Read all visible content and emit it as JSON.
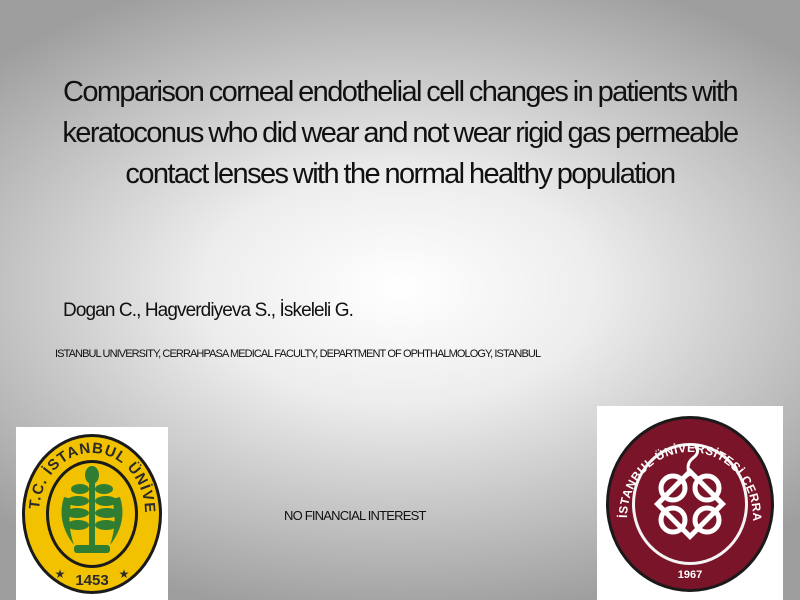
{
  "title": "Comparison corneal endothelial cell changes in patients with keratoconus who did wear and not wear rigid gas permeable  contact lenses with the normal healthy population",
  "authors": "Dogan C.,  Hagverdiyeva S., İskeleli G.",
  "affiliation": "ISTANBUL UNIVERSITY, CERRAHPASA MEDICAL FACULTY, DEPARTMENT OF OPHTHALMOLOGY, ISTANBUL",
  "disclosure": "NO FINANCIAL INTEREST",
  "logos": {
    "left": {
      "icon": "istanbul-university-seal",
      "ring_text": "T.C. İSTANBUL ÜNİVERSİTESİ",
      "year": "1453",
      "colors": {
        "ring": "#f2c200",
        "emblem": "#2f7d32"
      }
    },
    "right": {
      "icon": "cerrahpasa-medical-faculty-seal",
      "ring_text": "İSTANBUL ÜNİVERSİTESİ CERRAHPAŞA TIP FAKÜLTESİ",
      "year": "1967",
      "colors": {
        "ring": "#7a1428",
        "emblem": "#ffffff"
      }
    }
  }
}
